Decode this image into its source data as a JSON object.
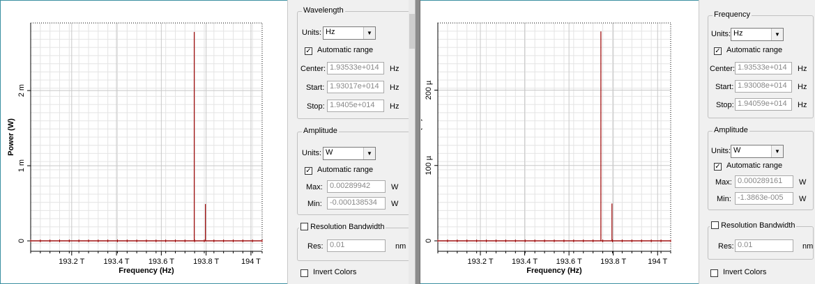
{
  "charts": [
    {
      "ylabel": "Power (W)",
      "xlabel": "Frequency (Hz)",
      "yticks": [
        {
          "v": 0,
          "label": "0"
        },
        {
          "v": 0.001,
          "label": "1 m"
        },
        {
          "v": 0.002,
          "label": "2 m"
        }
      ],
      "xticks": [
        {
          "v": 193.2,
          "label": "193.2 T"
        },
        {
          "v": 193.4,
          "label": "193.4 T"
        },
        {
          "v": 193.6,
          "label": "193.6 T"
        },
        {
          "v": 193.8,
          "label": "193.8 T"
        },
        {
          "v": 194.0,
          "label": "194 T"
        }
      ]
    },
    {
      "ylabel": "Power (W)",
      "xlabel": "Frequency (Hz)",
      "yticks": [
        {
          "v": 0,
          "label": "0"
        },
        {
          "v": 0.0001,
          "label": "100 µ"
        },
        {
          "v": 0.0002,
          "label": "200 µ"
        }
      ],
      "xticks": [
        {
          "v": 193.2,
          "label": "193.2 T"
        },
        {
          "v": 193.4,
          "label": "193.4 T"
        },
        {
          "v": 193.6,
          "label": "193.6 T"
        },
        {
          "v": 193.8,
          "label": "193.8 T"
        },
        {
          "v": 194.0,
          "label": "194 T"
        }
      ]
    }
  ],
  "chart_data": [
    {
      "type": "line",
      "xlabel": "Frequency (Hz)",
      "ylabel": "Power (W)",
      "x_unit": "THz",
      "xlim": [
        193.017,
        194.05
      ],
      "ylim": [
        -0.000138534,
        0.00289942
      ],
      "grid": true,
      "series": [
        {
          "color": "#a01010",
          "peaks": [
            {
              "x": 193.747,
              "y": 0.00278
            },
            {
              "x": 193.797,
              "y": 0.00049
            }
          ],
          "baseline": 0
        }
      ]
    },
    {
      "type": "line",
      "xlabel": "Frequency (Hz)",
      "ylabel": "Power (W)",
      "x_unit": "THz",
      "xlim": [
        193.008,
        194.059
      ],
      "ylim": [
        -1.3863e-05,
        0.000289161
      ],
      "grid": true,
      "series": [
        {
          "color": "#a01010",
          "peaks": [
            {
              "x": 193.744,
              "y": 0.000278
            },
            {
              "x": 193.794,
              "y": 4.95e-05
            }
          ],
          "baseline": 0
        }
      ]
    }
  ],
  "panels": [
    {
      "axis_group": "Wavelength",
      "units_label": "Units:",
      "units_value": "Hz",
      "auto_range": "Automatic range",
      "center_label": "Center:",
      "center_value": "1.93533e+014",
      "center_unit": "Hz",
      "start_label": "Start:",
      "start_value": "1.93017e+014",
      "start_unit": "Hz",
      "stop_label": "Stop:",
      "stop_value": "1.9405e+014",
      "stop_unit": "Hz",
      "amp_group": "Amplitude",
      "amp_units_label": "Units:",
      "amp_units_value": "W",
      "amp_auto_range": "Automatic range",
      "max_label": "Max:",
      "max_value": "0.00289942",
      "max_unit": "W",
      "min_label": "Min:",
      "min_value": "-0.000138534",
      "min_unit": "W",
      "rbw_label": "Resolution Bandwidth",
      "res_label": "Res:",
      "res_value": "0.01",
      "res_unit": "nm",
      "invert_label": "Invert Colors"
    },
    {
      "axis_group": "Frequency",
      "units_label": "Units:",
      "units_value": "Hz",
      "auto_range": "Automatic range",
      "center_label": "Center:",
      "center_value": "1.93533e+014",
      "center_unit": "Hz",
      "start_label": "Start:",
      "start_value": "1.93008e+014",
      "start_unit": "Hz",
      "stop_label": "Stop:",
      "stop_value": "1.94059e+014",
      "stop_unit": "Hz",
      "amp_group": "Amplitude",
      "amp_units_label": "Units:",
      "amp_units_value": "W",
      "amp_auto_range": "Automatic range",
      "max_label": "Max:",
      "max_value": "0.000289161",
      "max_unit": "W",
      "min_label": "Min:",
      "min_value": "-1.3863e-005",
      "min_unit": "W",
      "rbw_label": "Resolution Bandwidth",
      "res_label": "Res:",
      "res_value": "0.01",
      "res_unit": "nm",
      "invert_label": "Invert Colors"
    }
  ]
}
